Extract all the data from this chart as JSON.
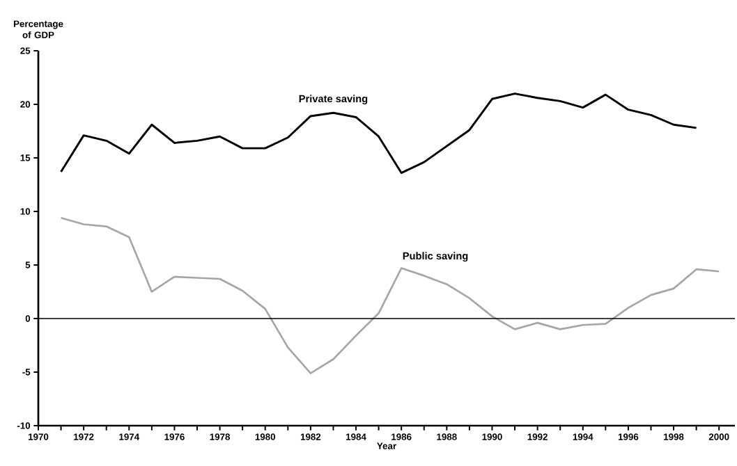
{
  "chart_data": {
    "type": "line",
    "ylabel": "Percentage of GDP",
    "xlabel": "Year",
    "x": [
      1971,
      1972,
      1973,
      1974,
      1975,
      1976,
      1977,
      1978,
      1979,
      1980,
      1981,
      1982,
      1983,
      1984,
      1985,
      1986,
      1987,
      1988,
      1989,
      1990,
      1991,
      1992,
      1993,
      1994,
      1995,
      1996,
      1997,
      1998,
      1999,
      2000
    ],
    "series": [
      {
        "name": "Private saving",
        "color": "#000000",
        "values": [
          13.7,
          17.1,
          16.6,
          15.4,
          18.1,
          16.4,
          16.6,
          17.0,
          15.9,
          15.9,
          16.9,
          18.9,
          19.2,
          18.8,
          17.0,
          13.6,
          14.6,
          16.1,
          17.6,
          20.5,
          21.0,
          20.6,
          20.3,
          19.7,
          20.9,
          19.5,
          19.0,
          18.1,
          17.8,
          null
        ]
      },
      {
        "name": "Public saving",
        "color": "#a6a6a6",
        "values": [
          9.4,
          8.8,
          8.6,
          7.6,
          2.5,
          3.9,
          3.8,
          3.7,
          2.6,
          0.9,
          -2.7,
          -5.1,
          -3.8,
          -1.6,
          0.5,
          4.7,
          4.0,
          3.2,
          1.9,
          0.2,
          -1.0,
          -0.4,
          -1.0,
          -0.6,
          -0.5,
          1.0,
          2.2,
          2.8,
          4.6,
          4.4
        ]
      }
    ],
    "xlim": [
      1970,
      2000.7
    ],
    "ylim": [
      -10,
      25
    ],
    "xticks": [
      1970,
      {
        "value": 1971,
        "label": null
      },
      1972,
      {
        "value": 1973,
        "label": null
      },
      1974,
      {
        "value": 1975,
        "label": null
      },
      1976,
      {
        "value": 1977,
        "label": null
      },
      1978,
      {
        "value": 1979,
        "label": null
      },
      1980,
      {
        "value": 1981,
        "label": null
      },
      1982,
      {
        "value": 1983,
        "label": null
      },
      1984,
      {
        "value": 1985,
        "label": null
      },
      1986,
      {
        "value": 1987,
        "label": null
      },
      1988,
      {
        "value": 1989,
        "label": null
      },
      1990,
      {
        "value": 1991,
        "label": null
      },
      1992,
      {
        "value": 1993,
        "label": null
      },
      1994,
      {
        "value": 1995,
        "label": null
      },
      1996,
      {
        "value": 1997,
        "label": null
      },
      1998,
      {
        "value": 1999,
        "label": null
      },
      2000
    ],
    "yticks": [
      -10,
      -5,
      0,
      5,
      10,
      15,
      20,
      25
    ],
    "ref_lines": [
      {
        "axis": "y",
        "value": 0,
        "color": "#000000"
      }
    ],
    "legend": false,
    "grid": false
  }
}
